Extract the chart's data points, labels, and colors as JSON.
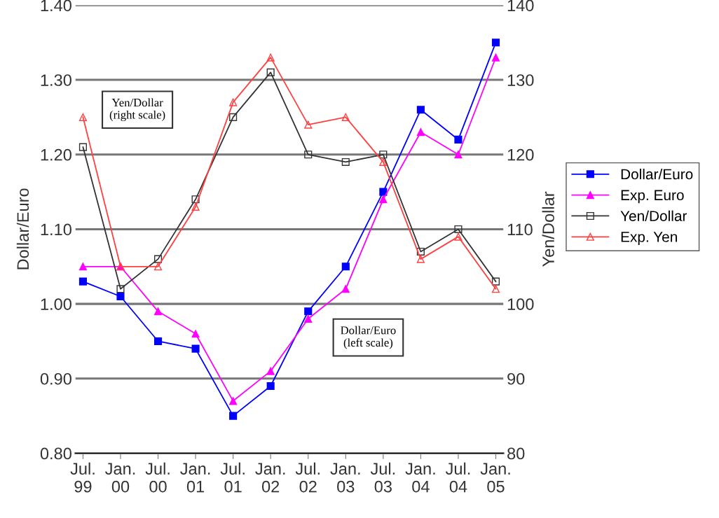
{
  "chart_data": {
    "type": "line",
    "categories": [
      "Jul.\n99",
      "Jan.\n00",
      "Jul.\n00",
      "Jan.\n01",
      "Jul.\n01",
      "Jan.\n02",
      "Jul.\n02",
      "Jan.\n03",
      "Jul.\n03",
      "Jan.\n04",
      "Jul.\n04",
      "Jan.\n05"
    ],
    "series": [
      {
        "name": "Dollar/Euro",
        "color": "#0000ff",
        "marker": "square",
        "values": [
          1.03,
          1.01,
          0.95,
          0.94,
          0.85,
          0.89,
          0.99,
          1.05,
          1.15,
          1.26,
          1.22,
          1.35
        ]
      },
      {
        "name": "Exp. Euro",
        "color": "#ff00ff",
        "marker": "triangle",
        "values": [
          1.05,
          1.05,
          0.99,
          0.96,
          0.87,
          0.91,
          0.98,
          1.02,
          1.14,
          1.23,
          1.2,
          1.33
        ]
      },
      {
        "name": "Yen/Dollar",
        "color": "#333333",
        "marker": "square",
        "axis": "y2",
        "values": [
          121,
          102,
          106,
          114,
          125,
          131,
          120,
          119,
          120,
          107,
          110,
          103
        ]
      },
      {
        "name": "Exp. Yen",
        "color": "#ff4040",
        "marker": "triangle",
        "axis": "y2",
        "values": [
          125,
          105,
          105,
          113,
          127,
          133,
          124,
          125,
          119,
          106,
          109,
          102
        ]
      }
    ],
    "ylabel": "Dollar/Euro",
    "y2label": "Yen/Dollar",
    "ylim": [
      0.8,
      1.4
    ],
    "yticks": [
      {
        "value": 0.8,
        "label": "0.80"
      },
      {
        "value": 0.9,
        "label": "0.90"
      },
      {
        "value": 1.0,
        "label": "1.00"
      },
      {
        "value": 1.1,
        "label": "1.10"
      },
      {
        "value": 1.2,
        "label": "1.20"
      },
      {
        "value": 1.3,
        "label": "1.30"
      },
      {
        "value": 1.4,
        "label": "1.40"
      }
    ],
    "y2lim": [
      80,
      140
    ],
    "y2ticks": [
      80,
      90,
      100,
      110,
      120,
      130,
      140
    ],
    "annotations": [
      "Yen/Dollar\n(right scale)",
      "Dollar/Euro\n(left scale)"
    ],
    "grid": "y",
    "legend": "right",
    "line_style": "solid"
  }
}
